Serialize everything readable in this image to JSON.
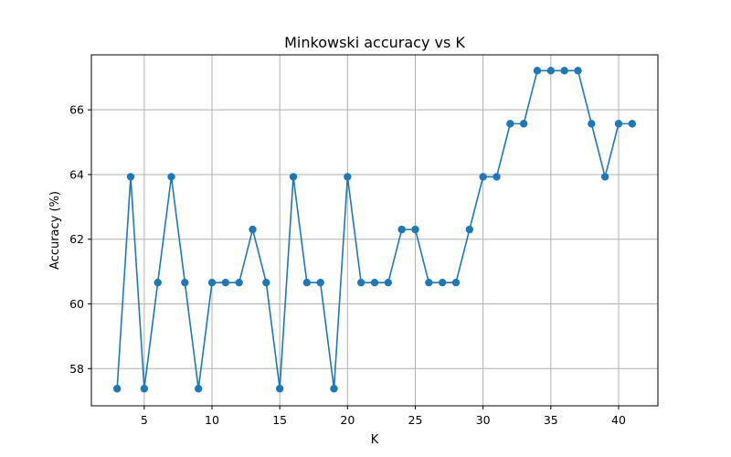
{
  "chart_data": {
    "type": "line",
    "title": "Minkowski accuracy vs K",
    "xlabel": "K",
    "ylabel": "Accuracy (%)",
    "xlim": [
      1.1,
      42.9
    ],
    "ylim": [
      56.85,
      67.7
    ],
    "xticks": [
      5,
      10,
      15,
      20,
      25,
      30,
      35,
      40
    ],
    "yticks": [
      58,
      60,
      62,
      64,
      66
    ],
    "grid": true,
    "marker": "circle",
    "color": "#1f77b4",
    "x": [
      3,
      4,
      5,
      6,
      7,
      8,
      9,
      10,
      11,
      12,
      13,
      14,
      15,
      16,
      17,
      18,
      19,
      20,
      21,
      22,
      23,
      24,
      25,
      26,
      27,
      28,
      29,
      30,
      31,
      32,
      33,
      34,
      35,
      36,
      37,
      38,
      39,
      40,
      41
    ],
    "y": [
      57.38,
      63.93,
      57.38,
      60.66,
      63.93,
      60.66,
      57.38,
      60.66,
      60.66,
      60.66,
      62.3,
      60.66,
      57.38,
      63.93,
      60.66,
      60.66,
      57.38,
      63.93,
      60.66,
      60.66,
      60.66,
      62.3,
      62.3,
      60.66,
      60.66,
      60.66,
      62.3,
      63.93,
      63.93,
      65.57,
      65.57,
      67.21,
      67.21,
      67.21,
      67.21,
      65.57,
      63.93,
      65.57,
      65.57
    ]
  }
}
